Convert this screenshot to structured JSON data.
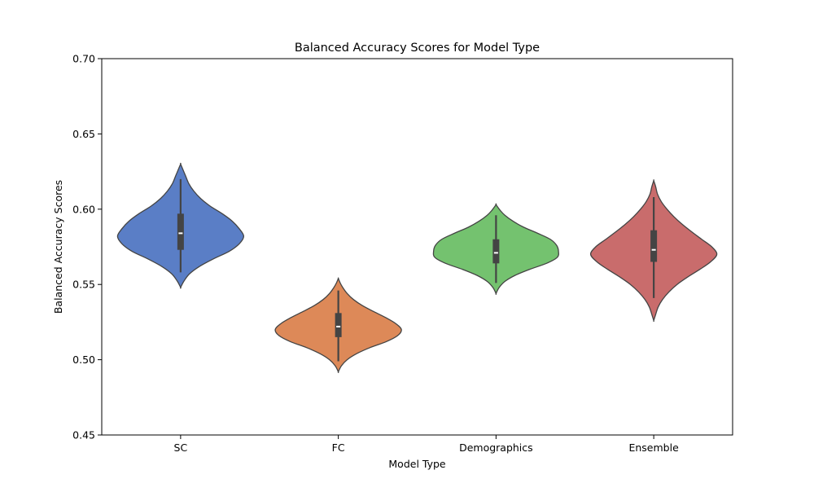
{
  "chart_data": {
    "type": "violin",
    "title": "Balanced Accuracy Scores for Model Type",
    "xlabel": "Model Type",
    "ylabel": "Balanced Accuracy Scores",
    "ylim": [
      0.45,
      0.7
    ],
    "yticks": [
      "0.45",
      "0.50",
      "0.55",
      "0.60",
      "0.65",
      "0.70"
    ],
    "grid": false,
    "categories": [
      "SC",
      "FC",
      "Demographics",
      "Ensemble"
    ],
    "series": [
      {
        "category": "SC",
        "color": "#5a7ec6",
        "min": 0.548,
        "max": 0.63,
        "whisker_low": 0.558,
        "q1": 0.573,
        "median": 0.584,
        "q3": 0.597,
        "whisker_high": 0.62,
        "density": [
          [
            0.548,
            0.0
          ],
          [
            0.552,
            0.05
          ],
          [
            0.557,
            0.14
          ],
          [
            0.562,
            0.3
          ],
          [
            0.567,
            0.52
          ],
          [
            0.572,
            0.77
          ],
          [
            0.577,
            0.93
          ],
          [
            0.582,
            1.0
          ],
          [
            0.587,
            0.93
          ],
          [
            0.592,
            0.82
          ],
          [
            0.597,
            0.66
          ],
          [
            0.602,
            0.47
          ],
          [
            0.607,
            0.32
          ],
          [
            0.612,
            0.21
          ],
          [
            0.617,
            0.13
          ],
          [
            0.622,
            0.08
          ],
          [
            0.626,
            0.04
          ],
          [
            0.63,
            0.0
          ]
        ]
      },
      {
        "category": "FC",
        "color": "#dd8958",
        "min": 0.492,
        "max": 0.554,
        "whisker_low": 0.499,
        "q1": 0.515,
        "median": 0.522,
        "q3": 0.531,
        "whisker_high": 0.546,
        "density": [
          [
            0.492,
            0.0
          ],
          [
            0.496,
            0.05
          ],
          [
            0.5,
            0.14
          ],
          [
            0.504,
            0.29
          ],
          [
            0.508,
            0.5
          ],
          [
            0.512,
            0.76
          ],
          [
            0.516,
            0.94
          ],
          [
            0.52,
            1.0
          ],
          [
            0.524,
            0.91
          ],
          [
            0.528,
            0.75
          ],
          [
            0.532,
            0.56
          ],
          [
            0.536,
            0.38
          ],
          [
            0.54,
            0.24
          ],
          [
            0.544,
            0.14
          ],
          [
            0.548,
            0.07
          ],
          [
            0.551,
            0.03
          ],
          [
            0.554,
            0.0
          ]
        ]
      },
      {
        "category": "Demographics",
        "color": "#74c26f",
        "min": 0.544,
        "max": 0.603,
        "whisker_low": 0.551,
        "q1": 0.564,
        "median": 0.571,
        "q3": 0.58,
        "whisker_high": 0.596,
        "density": [
          [
            0.544,
            0.0
          ],
          [
            0.548,
            0.05
          ],
          [
            0.552,
            0.14
          ],
          [
            0.556,
            0.3
          ],
          [
            0.56,
            0.53
          ],
          [
            0.564,
            0.8
          ],
          [
            0.568,
            0.97
          ],
          [
            0.572,
            0.99
          ],
          [
            0.576,
            0.96
          ],
          [
            0.58,
            0.86
          ],
          [
            0.584,
            0.66
          ],
          [
            0.588,
            0.44
          ],
          [
            0.592,
            0.27
          ],
          [
            0.596,
            0.14
          ],
          [
            0.599,
            0.07
          ],
          [
            0.603,
            0.0
          ]
        ]
      },
      {
        "category": "Ensemble",
        "color": "#c96c6c",
        "min": 0.526,
        "max": 0.619,
        "whisker_low": 0.541,
        "q1": 0.565,
        "median": 0.573,
        "q3": 0.586,
        "whisker_high": 0.608,
        "density": [
          [
            0.526,
            0.0
          ],
          [
            0.53,
            0.03
          ],
          [
            0.535,
            0.07
          ],
          [
            0.54,
            0.14
          ],
          [
            0.545,
            0.24
          ],
          [
            0.55,
            0.37
          ],
          [
            0.555,
            0.54
          ],
          [
            0.56,
            0.73
          ],
          [
            0.565,
            0.9
          ],
          [
            0.57,
            1.0
          ],
          [
            0.575,
            0.92
          ],
          [
            0.58,
            0.76
          ],
          [
            0.585,
            0.6
          ],
          [
            0.59,
            0.45
          ],
          [
            0.595,
            0.32
          ],
          [
            0.6,
            0.21
          ],
          [
            0.605,
            0.12
          ],
          [
            0.61,
            0.06
          ],
          [
            0.615,
            0.03
          ],
          [
            0.619,
            0.0
          ]
        ]
      }
    ]
  }
}
